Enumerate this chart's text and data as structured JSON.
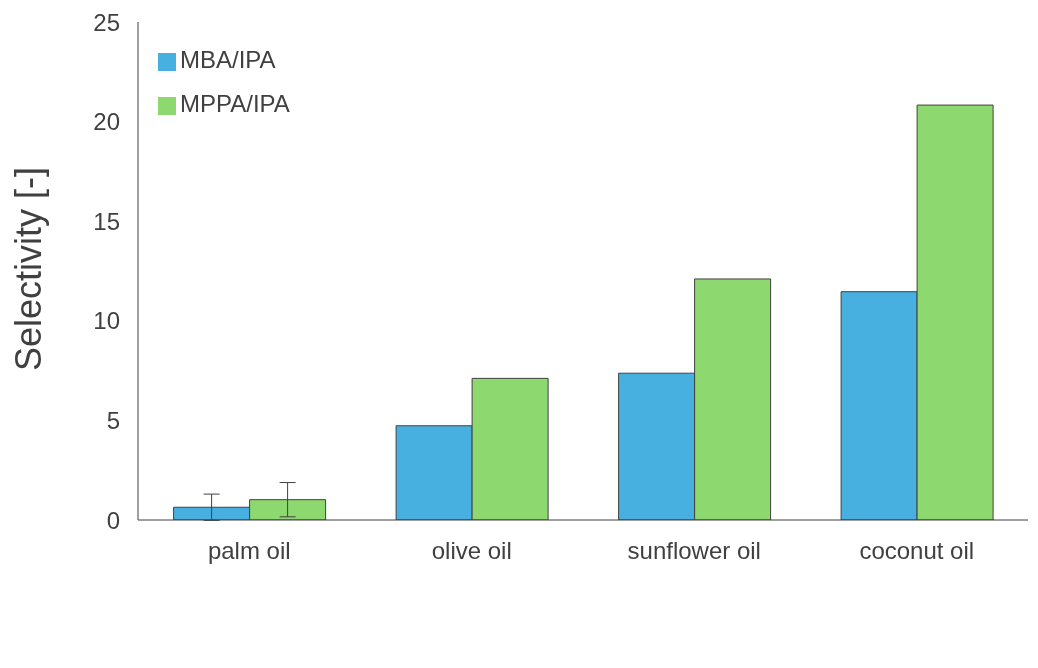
{
  "chart_data": {
    "type": "bar",
    "ylabel": "Selectivity [-]",
    "categories": [
      "palm oil",
      "olive oil",
      "sunflower oil",
      "coconut oil"
    ],
    "series": [
      {
        "name": "MBA/IPA",
        "color": "#47b0e0",
        "values": [
          0.64,
          4.73,
          7.37,
          11.46
        ],
        "errors": [
          0.66,
          null,
          null,
          null
        ]
      },
      {
        "name": "MPPA/IPA",
        "color": "#8dd96f",
        "values": [
          1.02,
          7.11,
          12.1,
          20.83
        ],
        "errors": [
          0.86,
          null,
          null,
          null
        ]
      }
    ],
    "ylim": [
      0,
      25
    ],
    "yticks": [
      0,
      5,
      10,
      15,
      20,
      25
    ],
    "legend": "top left"
  }
}
